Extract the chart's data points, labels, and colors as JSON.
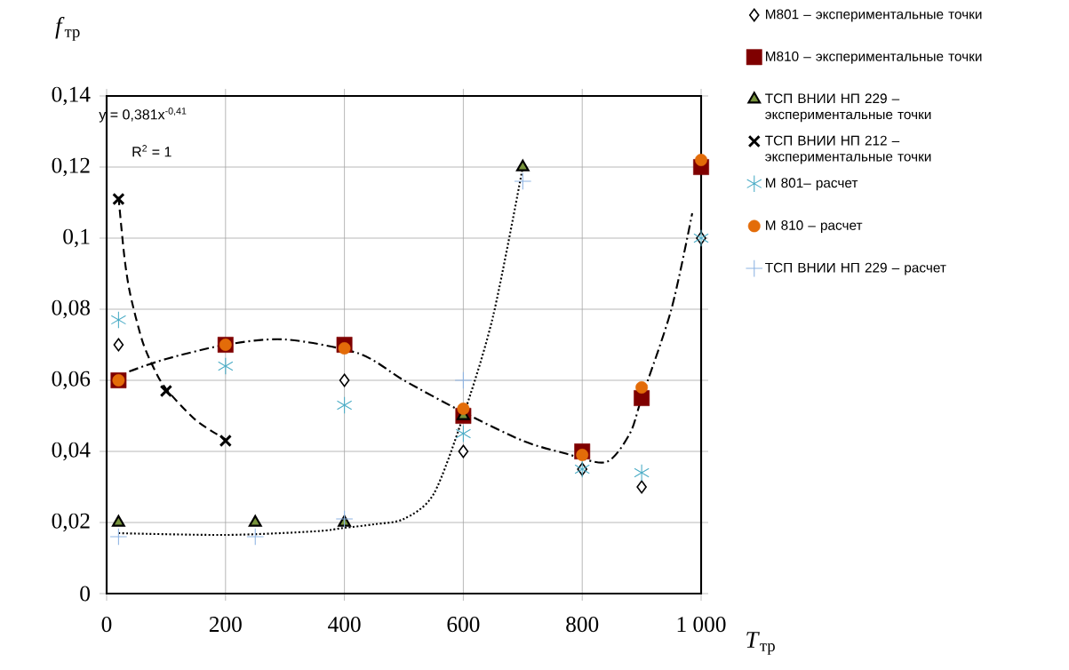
{
  "chart_data": {
    "type": "scatter",
    "xlabel": "*T*$_{тр}$",
    "ylabel": "*f*$_{тр}$",
    "annotations": [
      "y = 0,381x$^{-0,41}$",
      "R$^{2}$ = 1"
    ],
    "xlim": [
      0,
      1000
    ],
    "ylim": [
      0,
      0.14
    ],
    "xticks": [
      0,
      200,
      400,
      600,
      800,
      {
        "value": 1000,
        "label": "1 000"
      }
    ],
    "yticks": [
      0,
      {
        "value": 0.02,
        "label": "0,02"
      },
      {
        "value": 0.04,
        "label": "0,04"
      },
      {
        "value": 0.06,
        "label": "0,06"
      },
      {
        "value": 0.08,
        "label": "0,08"
      },
      {
        "value": 0.1,
        "label": "0,1"
      },
      {
        "value": 0.12,
        "label": "0,12"
      },
      {
        "value": 0.14,
        "label": "0,14"
      }
    ],
    "grid": true,
    "legend": "right",
    "series": [
      {
        "name": "M801 – экспериментальные точки",
        "type": "scatter",
        "marker": "diamond",
        "color": "#000000",
        "x": [
          20,
          400,
          600,
          800,
          900,
          1000
        ],
        "values": [
          0.07,
          0.06,
          0.04,
          0.035,
          0.03,
          0.1
        ]
      },
      {
        "name": "M810 – экспериментальные точки",
        "type": "scatter",
        "marker": "square",
        "color": "#7f0000",
        "x": [
          20,
          200,
          400,
          600,
          800,
          900,
          1000
        ],
        "values": [
          0.06,
          0.07,
          0.07,
          0.05,
          0.04,
          0.055,
          0.12
        ]
      },
      {
        "name": "ТСП ВНИИ НП 229 – экспериментальные точки",
        "type": "scatter",
        "marker": "triangle",
        "color": "#77933c",
        "x": [
          20,
          250,
          400,
          600,
          700
        ],
        "values": [
          0.02,
          0.02,
          0.02,
          0.05,
          0.12
        ]
      },
      {
        "name": "ТСП ВНИИ НП 212 – экспериментальные точки",
        "type": "scatter",
        "marker": "cross",
        "color": "#000000",
        "x": [
          20,
          100,
          200
        ],
        "values": [
          0.111,
          0.057,
          0.043
        ]
      },
      {
        "name": "М 801– расчет",
        "type": "scatter",
        "color": "#4bacc6",
        "x": [
          20,
          200,
          400,
          600,
          800,
          900,
          1000
        ],
        "values": [
          0.077,
          0.064,
          0.053,
          0.045,
          0.035,
          0.034,
          0.1
        ]
      },
      {
        "name": "М 810 – расчет",
        "type": "scatter",
        "marker": "circle",
        "color": "#e36c09",
        "x": [
          20,
          200,
          400,
          600,
          800,
          900,
          1000
        ],
        "values": [
          0.06,
          0.07,
          0.069,
          0.052,
          0.039,
          0.058,
          0.122
        ]
      },
      {
        "name": "ТСП ВНИИ НП 229 – расчет",
        "type": "scatter",
        "marker": "plus",
        "color": "#8eb4e3",
        "x": [
          20,
          250,
          400,
          600,
          700
        ],
        "values": [
          0.016,
          0.016,
          0.021,
          0.06,
          0.116
        ]
      },
      {
        "type": "line",
        "line_style": "dashed",
        "color": "#000000",
        "x": [
          20,
          30,
          40,
          60,
          80,
          100,
          150,
          200
        ],
        "values": [
          0.1116,
          0.0945,
          0.084,
          0.0711,
          0.0632,
          0.0576,
          0.0488,
          0.0434
        ]
      },
      {
        "type": "line",
        "line_style": "dotted",
        "color": "#000000",
        "x": [
          20,
          200,
          350,
          400,
          450,
          500,
          550,
          600,
          650,
          700
        ],
        "values": [
          0.017,
          0.0165,
          0.0175,
          0.0185,
          0.0195,
          0.021,
          0.028,
          0.05,
          0.078,
          0.12
        ]
      },
      {
        "type": "line",
        "line_style": "dashdot",
        "color": "#000000",
        "x": [
          38,
          100,
          200,
          300,
          425,
          500,
          600,
          700,
          770,
          840,
          880,
          900,
          950,
          985
        ],
        "values": [
          0.0625,
          0.066,
          0.07,
          0.0715,
          0.0675,
          0.06,
          0.051,
          0.043,
          0.0395,
          0.037,
          0.045,
          0.055,
          0.08,
          0.107
        ]
      }
    ]
  }
}
